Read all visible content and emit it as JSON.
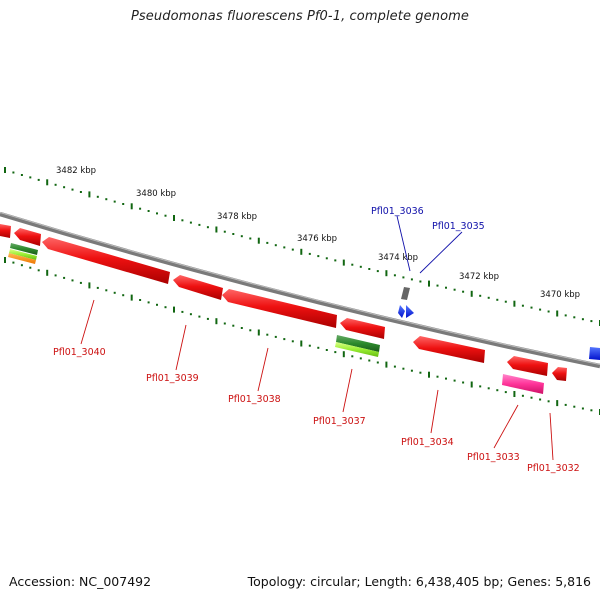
{
  "title": "Pseudomonas fluorescens Pf0-1, complete genome",
  "footer": {
    "accession": "Accession: NC_007492",
    "summary": "Topology: circular; Length: 6,438,405 bp; Genes: 5,816"
  },
  "ticks": [
    {
      "label": "3482 kbp"
    },
    {
      "label": "3480 kbp"
    },
    {
      "label": "3478 kbp"
    },
    {
      "label": "3476 kbp"
    },
    {
      "label": "3474 kbp"
    },
    {
      "label": "3472 kbp"
    },
    {
      "label": "3470 kbp"
    }
  ],
  "gene_labels": [
    {
      "id": "Pfl01_3040",
      "color": "#cc1111"
    },
    {
      "id": "Pfl01_3039",
      "color": "#cc1111"
    },
    {
      "id": "Pfl01_3038",
      "color": "#cc1111"
    },
    {
      "id": "Pfl01_3037",
      "color": "#cc1111"
    },
    {
      "id": "Pfl01_3034",
      "color": "#cc1111"
    },
    {
      "id": "Pfl01_3033",
      "color": "#cc1111"
    },
    {
      "id": "Pfl01_3032",
      "color": "#cc1111"
    },
    {
      "id": "Pfl01_3036",
      "color": "#1111aa"
    },
    {
      "id": "Pfl01_3035",
      "color": "#1111aa"
    }
  ],
  "colors": {
    "backbone": "#888888",
    "tick_marks": "#116611",
    "gene_red": "#ee1111",
    "gene_green": "#2c8a2c",
    "gene_lime": "#99ee33",
    "gene_pink": "#ff3399",
    "gene_orange": "#ff8800",
    "gene_blue": "#1133ff",
    "gene_gray": "#666666"
  }
}
